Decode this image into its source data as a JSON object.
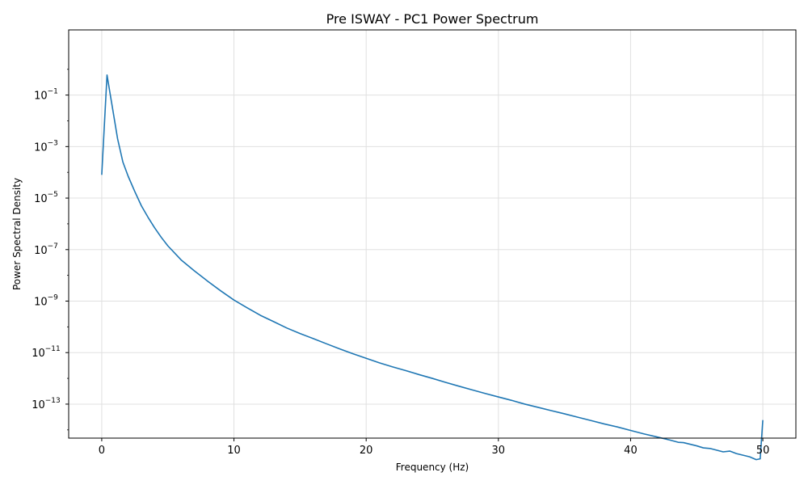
{
  "chart_data": {
    "type": "line",
    "title": "Pre ISWAY - PC1 Power Spectrum",
    "xlabel": "Frequency (Hz)",
    "ylabel": "Power Spectral Density",
    "xlim": [
      -2.5,
      52.5
    ],
    "ylim_log10": [
      -14.32,
      1.53
    ],
    "y_scale": "log",
    "grid": true,
    "x_ticks": [
      {
        "value": 0,
        "label": "0"
      },
      {
        "value": 10,
        "label": "10"
      },
      {
        "value": 20,
        "label": "20"
      },
      {
        "value": 30,
        "label": "30"
      },
      {
        "value": 40,
        "label": "40"
      },
      {
        "value": 50,
        "label": "50"
      }
    ],
    "y_ticks": [
      {
        "exp": -1,
        "base": "10",
        "sup": "−1"
      },
      {
        "exp": -3,
        "base": "10",
        "sup": "−3"
      },
      {
        "exp": -5,
        "base": "10",
        "sup": "−5"
      },
      {
        "exp": -7,
        "base": "10",
        "sup": "−7"
      },
      {
        "exp": -9,
        "base": "10",
        "sup": "−9"
      },
      {
        "exp": -11,
        "base": "10",
        "sup": "−11"
      },
      {
        "exp": -13,
        "base": "10",
        "sup": "−13"
      }
    ],
    "series": [
      {
        "color": "#1f77b4",
        "x": [
          0.0,
          0.4,
          1.2,
          1.6,
          2.0,
          2.5,
          3.0,
          3.5,
          4.0,
          4.5,
          5.0,
          6.0,
          7.0,
          8.0,
          9.0,
          10.0,
          11.0,
          12.0,
          13.0,
          14.0,
          15.0,
          16.0,
          17.0,
          18.0,
          19.0,
          20.0,
          21.0,
          22.0,
          23.0,
          24.0,
          25.0,
          26.0,
          27.0,
          28.0,
          29.0,
          30.0,
          31.0,
          32.0,
          33.0,
          34.0,
          35.0,
          36.0,
          37.0,
          38.0,
          39.0,
          40.0,
          41.0,
          42.0,
          43.0,
          43.6,
          44.0,
          45.0,
          45.5,
          46.0,
          47.0,
          47.5,
          48.0,
          49.0,
          49.5,
          49.8,
          50.0
        ],
        "y": [
          8e-05,
          0.6,
          0.002,
          0.00025,
          7e-05,
          1.8e-05,
          5e-06,
          1.8e-06,
          7e-07,
          3e-07,
          1.4e-07,
          4e-08,
          1.5e-08,
          6e-09,
          2.5e-09,
          1.1e-09,
          5.5e-10,
          2.8e-10,
          1.6e-10,
          9e-11,
          5.5e-11,
          3.5e-11,
          2.2e-11,
          1.4e-11,
          9e-12,
          6e-12,
          4e-12,
          2.8e-12,
          2e-12,
          1.4e-12,
          1e-12,
          7e-13,
          5e-13,
          3.6e-13,
          2.6e-13,
          1.9e-13,
          1.4e-13,
          1e-13,
          7.5e-14,
          5.6e-14,
          4.2e-14,
          3.1e-14,
          2.3e-14,
          1.7e-14,
          1.3e-14,
          9.5e-15,
          7e-15,
          5.3e-15,
          4e-15,
          3.3e-15,
          3.2e-15,
          2.4e-15,
          2e-15,
          1.9e-15,
          1.4e-15,
          1.5e-15,
          1.2e-15,
          9e-16,
          7e-16,
          7.5e-16,
          2.4e-14
        ]
      }
    ]
  }
}
